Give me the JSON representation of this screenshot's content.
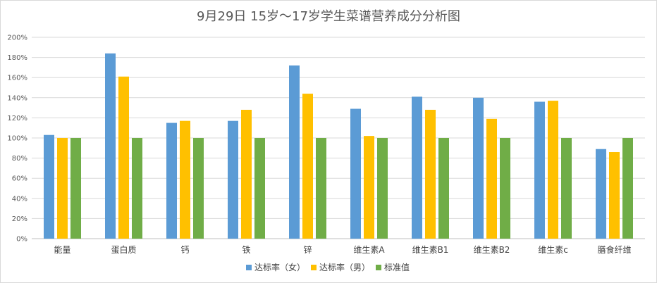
{
  "chart_data": {
    "type": "bar",
    "title": "9月29日 15岁～17岁学生菜谱营养成分分析图",
    "categories": [
      "能量",
      "蛋白质",
      "钙",
      "铁",
      "锌",
      "维生素A",
      "维生素B1",
      "维生素B2",
      "维生素c",
      "膳食纤维"
    ],
    "series": [
      {
        "name": "达标率（女）",
        "color": "#5B9BD5",
        "values": [
          103,
          184,
          115,
          117,
          172,
          129,
          141,
          140,
          136,
          89
        ]
      },
      {
        "name": "达标率（男）",
        "color": "#FFC000",
        "values": [
          100,
          161,
          117,
          128,
          144,
          102,
          128,
          119,
          137,
          86
        ]
      },
      {
        "name": "标准值",
        "color": "#70AD47",
        "values": [
          100,
          100,
          100,
          100,
          100,
          100,
          100,
          100,
          100,
          100
        ]
      }
    ],
    "ylim": [
      0,
      200
    ],
    "yticks": [
      0,
      20,
      40,
      60,
      80,
      100,
      120,
      140,
      160,
      180,
      200
    ],
    "ytick_labels": [
      "0%",
      "20%",
      "40%",
      "60%",
      "80%",
      "100%",
      "120%",
      "140%",
      "160%",
      "180%",
      "200%"
    ],
    "xlabel": "",
    "ylabel": "",
    "grid": true,
    "legend_position": "bottom"
  }
}
